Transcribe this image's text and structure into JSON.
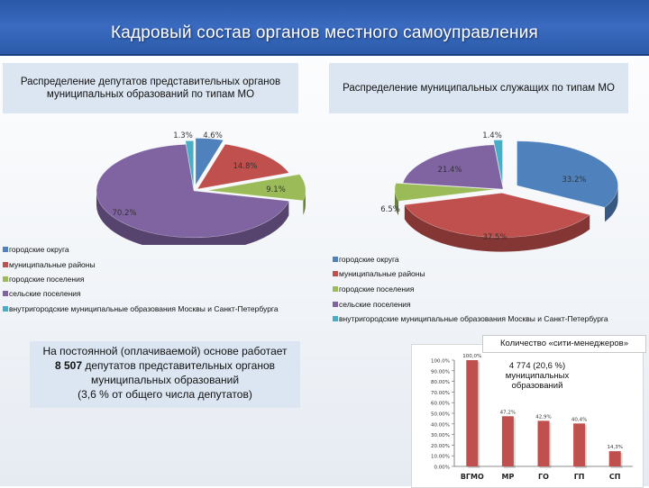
{
  "header": {
    "title": "Кадровый состав органов местного самоуправления"
  },
  "captions": {
    "left": "Распределение  депутатов представительных органов  муниципальных образований по типам МО",
    "right": "Распределение муниципальных служащих по типам МО"
  },
  "colors": {
    "gorodskie_okruga": "#4f81bd",
    "munitsipalnye_rayony": "#c0504d",
    "gorodskie_poseleniya": "#9bbb59",
    "selskie_poseleniya": "#8064a2",
    "vnutrigorodskie": "#4bacc6"
  },
  "note": {
    "line1": "На постоянной (оплачиваемой) основе работает",
    "number": "8 507",
    "line2": "депутатов представительных органов",
    "line3": "муниципальных образований",
    "line4": "(3,6 % от общего числа депутатов)"
  },
  "mini": {
    "title": "Количество «сити-менеджеров»",
    "note": "4  774 (20,6 %) муниципальных образований"
  },
  "chart_data": [
    {
      "type": "pie",
      "title": "Распределение  депутатов представительных органов  муниципальных образований по типам МО",
      "slices": [
        {
          "name": "городские округа",
          "value": 4.6,
          "label": "4.6%"
        },
        {
          "name": "муниципальные районы",
          "value": 14.8,
          "label": "14.8%"
        },
        {
          "name": "городские поселения",
          "value": 9.1,
          "label": "9.1%"
        },
        {
          "name": "сельские поселения",
          "value": 70.2,
          "label": "70.2%"
        },
        {
          "name": "внутригородские муниципальные образования Москвы и Санкт-Петербурга",
          "value": 1.3,
          "label": "1.3%"
        }
      ],
      "legend": "bottom",
      "style": "3d-exploded"
    },
    {
      "type": "pie",
      "title": "Распределение муниципальных служащих по типам МО",
      "slices": [
        {
          "name": "городские округа",
          "value": 33.2,
          "label": "33.2%"
        },
        {
          "name": "муниципальные районы",
          "value": 37.5,
          "label": "37.5%"
        },
        {
          "name": "городские поселения",
          "value": 6.5,
          "label": "6.5%"
        },
        {
          "name": "сельские поселения",
          "value": 21.4,
          "label": "21.4%"
        },
        {
          "name": "внутригородские муниципальные образования Москвы и Санкт-Петербурга",
          "value": 1.4,
          "label": "1.4%"
        }
      ],
      "legend": "bottom",
      "style": "3d-exploded"
    },
    {
      "type": "bar",
      "title": "Количество «сити-менеджеров»",
      "categories": [
        "ВГМО",
        "МР",
        "ГО",
        "ГП",
        "СП"
      ],
      "values": [
        100.0,
        47.2,
        42.9,
        40.4,
        14.3
      ],
      "value_labels": [
        "100,0%",
        "47,2%",
        "42,9%",
        "40,4%",
        "14,3%"
      ],
      "y_ticks": [
        "0.00%",
        "10.00%",
        "20.00%",
        "30.00%",
        "40.00%",
        "50.00%",
        "60.00%",
        "70.00%",
        "80.00%",
        "90.00%",
        "100.0%"
      ],
      "ylim": [
        0,
        100
      ],
      "color": "#c0504d",
      "grid": false,
      "legend": "none"
    }
  ]
}
